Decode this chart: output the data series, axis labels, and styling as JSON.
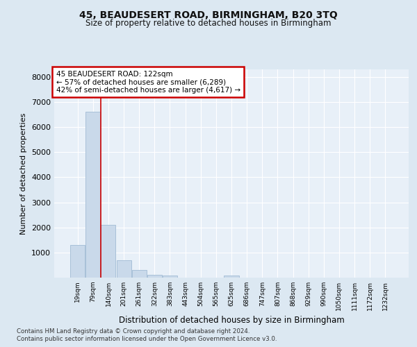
{
  "title1": "45, BEAUDESERT ROAD, BIRMINGHAM, B20 3TQ",
  "title2": "Size of property relative to detached houses in Birmingham",
  "xlabel": "Distribution of detached houses by size in Birmingham",
  "ylabel": "Number of detached properties",
  "bin_labels": [
    "19sqm",
    "79sqm",
    "140sqm",
    "201sqm",
    "261sqm",
    "322sqm",
    "383sqm",
    "443sqm",
    "504sqm",
    "565sqm",
    "625sqm",
    "686sqm",
    "747sqm",
    "807sqm",
    "868sqm",
    "929sqm",
    "990sqm",
    "1050sqm",
    "1111sqm",
    "1172sqm",
    "1232sqm"
  ],
  "bar_heights": [
    1300,
    6600,
    2100,
    700,
    300,
    120,
    80,
    0,
    0,
    0,
    80,
    0,
    0,
    0,
    0,
    0,
    0,
    0,
    0,
    0,
    0
  ],
  "bar_color": "#c9d9ea",
  "bar_edge_color": "#a8c0d8",
  "red_line_x": 1.5,
  "annotation_text": "45 BEAUDESERT ROAD: 122sqm\n← 57% of detached houses are smaller (6,289)\n42% of semi-detached houses are larger (4,617) →",
  "annotation_box_facecolor": "#ffffff",
  "annotation_box_edgecolor": "#cc0000",
  "ylim": [
    0,
    8300
  ],
  "yticks": [
    0,
    1000,
    2000,
    3000,
    4000,
    5000,
    6000,
    7000,
    8000
  ],
  "bg_color": "#dce8f2",
  "plot_bg_color": "#e8f0f8",
  "grid_color": "#ffffff",
  "footnote1": "Contains HM Land Registry data © Crown copyright and database right 2024.",
  "footnote2": "Contains public sector information licensed under the Open Government Licence v3.0."
}
